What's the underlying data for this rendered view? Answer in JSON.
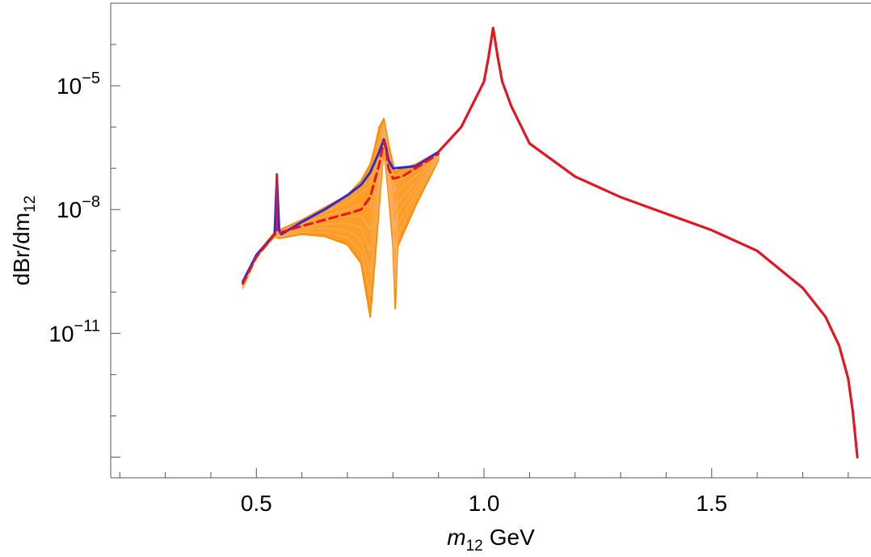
{
  "chart_data": {
    "type": "line",
    "title": "",
    "xlabel": "m₁₂ GeV",
    "xlabel_parts": {
      "symbol": "m",
      "subscript": "12",
      "unit": "GeV"
    },
    "ylabel": "dBr/dm₁₂",
    "ylabel_parts": {
      "main": "dBr/dm",
      "subscript": "12"
    },
    "yscale": "log",
    "xlim": [
      0.18,
      1.85
    ],
    "ylim": [
      -14.5,
      -3.0
    ],
    "x_ticks": [
      {
        "value": 0.5,
        "label": "0.5"
      },
      {
        "value": 1.0,
        "label": "1.0"
      },
      {
        "value": 1.5,
        "label": "1.5"
      }
    ],
    "y_ticks": [
      {
        "value": -5,
        "base": "10",
        "exp": "−5"
      },
      {
        "value": -8,
        "base": "10",
        "exp": "−8"
      },
      {
        "value": -11,
        "base": "10",
        "exp": "−11"
      }
    ],
    "grid": false,
    "colors": {
      "band": "#ff8c00",
      "blue": "#2b2bd6",
      "red": "#e8161b",
      "axes": "#555555"
    },
    "series": [
      {
        "style": "band",
        "color": "#ff8c00",
        "x": [
          0.47,
          0.5,
          0.54,
          0.55,
          0.6,
          0.65,
          0.7,
          0.73,
          0.75,
          0.76,
          0.77,
          0.78,
          0.79,
          0.8,
          0.805,
          0.81,
          0.85,
          0.9
        ],
        "y_upper": [
          -9.9,
          -9.1,
          -8.55,
          -8.5,
          -8.25,
          -7.95,
          -7.65,
          -7.3,
          -6.9,
          -6.5,
          -6.0,
          -5.8,
          -6.4,
          -6.9,
          -7.1,
          -7.05,
          -6.9,
          -6.6
        ],
        "y_lower": [
          -9.9,
          -9.15,
          -8.65,
          -8.7,
          -8.6,
          -8.65,
          -8.85,
          -9.3,
          -10.6,
          -9.3,
          -7.9,
          -6.5,
          -7.6,
          -8.9,
          -10.4,
          -8.9,
          -7.9,
          -6.8
        ]
      },
      {
        "style": "solid",
        "color": "#2b2bd6",
        "x": [
          0.47,
          0.5,
          0.54,
          0.545,
          0.55,
          0.555,
          0.6,
          0.65,
          0.7,
          0.73,
          0.75,
          0.77,
          0.78,
          0.785,
          0.79,
          0.8,
          0.85,
          0.9,
          0.95,
          1.0,
          1.01,
          1.02,
          1.03,
          1.04,
          1.06,
          1.1,
          1.2,
          1.3,
          1.4,
          1.5,
          1.6,
          1.7,
          1.75,
          1.78,
          1.8,
          1.81,
          1.82
        ],
        "y": [
          -9.75,
          -9.1,
          -8.6,
          -7.2,
          -8.5,
          -8.6,
          -8.3,
          -8.0,
          -7.65,
          -7.4,
          -7.1,
          -6.6,
          -6.3,
          -6.5,
          -6.8,
          -7.0,
          -6.95,
          -6.6,
          -6.0,
          -4.9,
          -4.3,
          -3.6,
          -4.3,
          -4.9,
          -5.5,
          -6.4,
          -7.2,
          -7.7,
          -8.1,
          -8.5,
          -9.0,
          -9.9,
          -10.6,
          -11.3,
          -12.1,
          -12.9,
          -14.0
        ]
      },
      {
        "style": "dashed",
        "color": "#e8161b",
        "x": [
          0.47,
          0.5,
          0.54,
          0.6,
          0.65,
          0.7,
          0.73,
          0.75,
          0.77,
          0.78,
          0.785,
          0.79,
          0.8,
          0.82,
          0.85,
          0.9
        ],
        "y": [
          -9.8,
          -9.15,
          -8.6,
          -8.4,
          -8.25,
          -8.1,
          -8.0,
          -7.7,
          -6.9,
          -6.35,
          -6.55,
          -7.0,
          -7.25,
          -7.2,
          -7.0,
          -6.65
        ]
      },
      {
        "style": "solid",
        "color": "#e8161b",
        "x": [
          0.9,
          0.95,
          1.0,
          1.01,
          1.02,
          1.03,
          1.04,
          1.06,
          1.1,
          1.2,
          1.3,
          1.4,
          1.5,
          1.6,
          1.7,
          1.75,
          1.78,
          1.8,
          1.81,
          1.82
        ],
        "y": [
          -6.6,
          -6.0,
          -4.9,
          -4.3,
          -3.6,
          -4.3,
          -4.9,
          -5.5,
          -6.4,
          -7.2,
          -7.7,
          -8.1,
          -8.5,
          -9.0,
          -9.9,
          -10.6,
          -11.3,
          -12.1,
          -12.9,
          -14.0
        ]
      },
      {
        "style": "solid",
        "color": "#e8161b",
        "x": [
          0.545,
          0.545
        ],
        "y": [
          -8.5,
          -7.15
        ]
      }
    ]
  }
}
